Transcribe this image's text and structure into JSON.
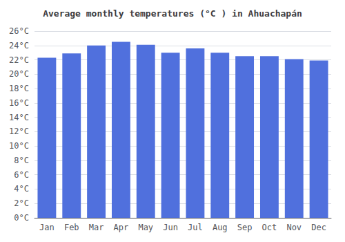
{
  "chart_data": {
    "type": "bar",
    "title": "Average monthly temperatures (°C ) in Ahuachapán",
    "categories": [
      "Jan",
      "Feb",
      "Mar",
      "Apr",
      "May",
      "Jun",
      "Jul",
      "Aug",
      "Sep",
      "Oct",
      "Nov",
      "Dec"
    ],
    "values": [
      22.3,
      22.9,
      24.0,
      24.5,
      24.1,
      23.0,
      23.6,
      23.0,
      22.5,
      22.5,
      22.1,
      21.9
    ],
    "ylim": [
      0,
      26
    ],
    "yticks": [
      {
        "value": 0,
        "label": "0°C"
      },
      {
        "value": 2,
        "label": "2°C"
      },
      {
        "value": 4,
        "label": "4°C"
      },
      {
        "value": 6,
        "label": "6°C"
      },
      {
        "value": 8,
        "label": "8°C"
      },
      {
        "value": 10,
        "label": "10°C"
      },
      {
        "value": 12,
        "label": "12°C"
      },
      {
        "value": 14,
        "label": "14°C"
      },
      {
        "value": 16,
        "label": "16°C"
      },
      {
        "value": 18,
        "label": "18°C"
      },
      {
        "value": 20,
        "label": "20°C"
      },
      {
        "value": 22,
        "label": "22°C"
      },
      {
        "value": 24,
        "label": "24°C"
      },
      {
        "value": 26,
        "label": "26°C"
      }
    ],
    "grid": true
  }
}
